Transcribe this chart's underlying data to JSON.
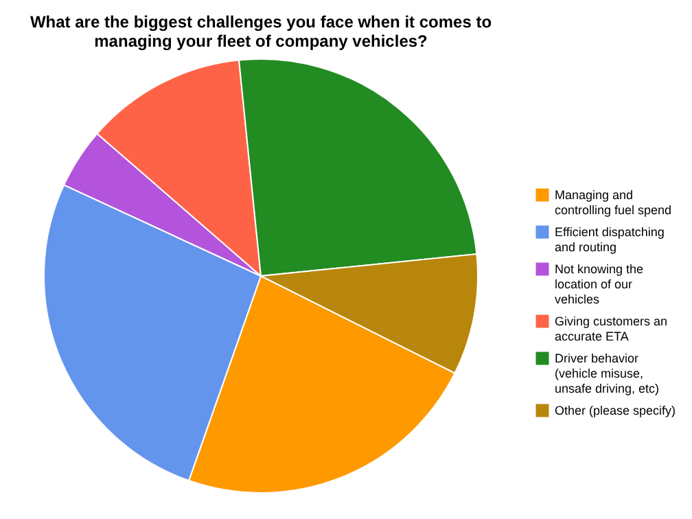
{
  "chart_data": {
    "type": "pie",
    "title": "What are the biggest challenges you face when it comes to managing your fleet of company vehicles?",
    "categories": [
      "Managing and controlling fuel spend",
      "Efficient dispatching and routing",
      "Not knowing the location of our vehicles",
      "Giving customers an accurate ETA",
      "Driver behavior (vehicle misuse, unsafe driving, etc)",
      "Other (please specify)"
    ],
    "values": [
      23,
      26.5,
      4.5,
      12,
      25,
      9
    ],
    "colors": [
      "#ff9900",
      "#6495ed",
      "#b454dc",
      "#ff6347",
      "#228b22",
      "#b8860b"
    ],
    "legend": "right"
  }
}
